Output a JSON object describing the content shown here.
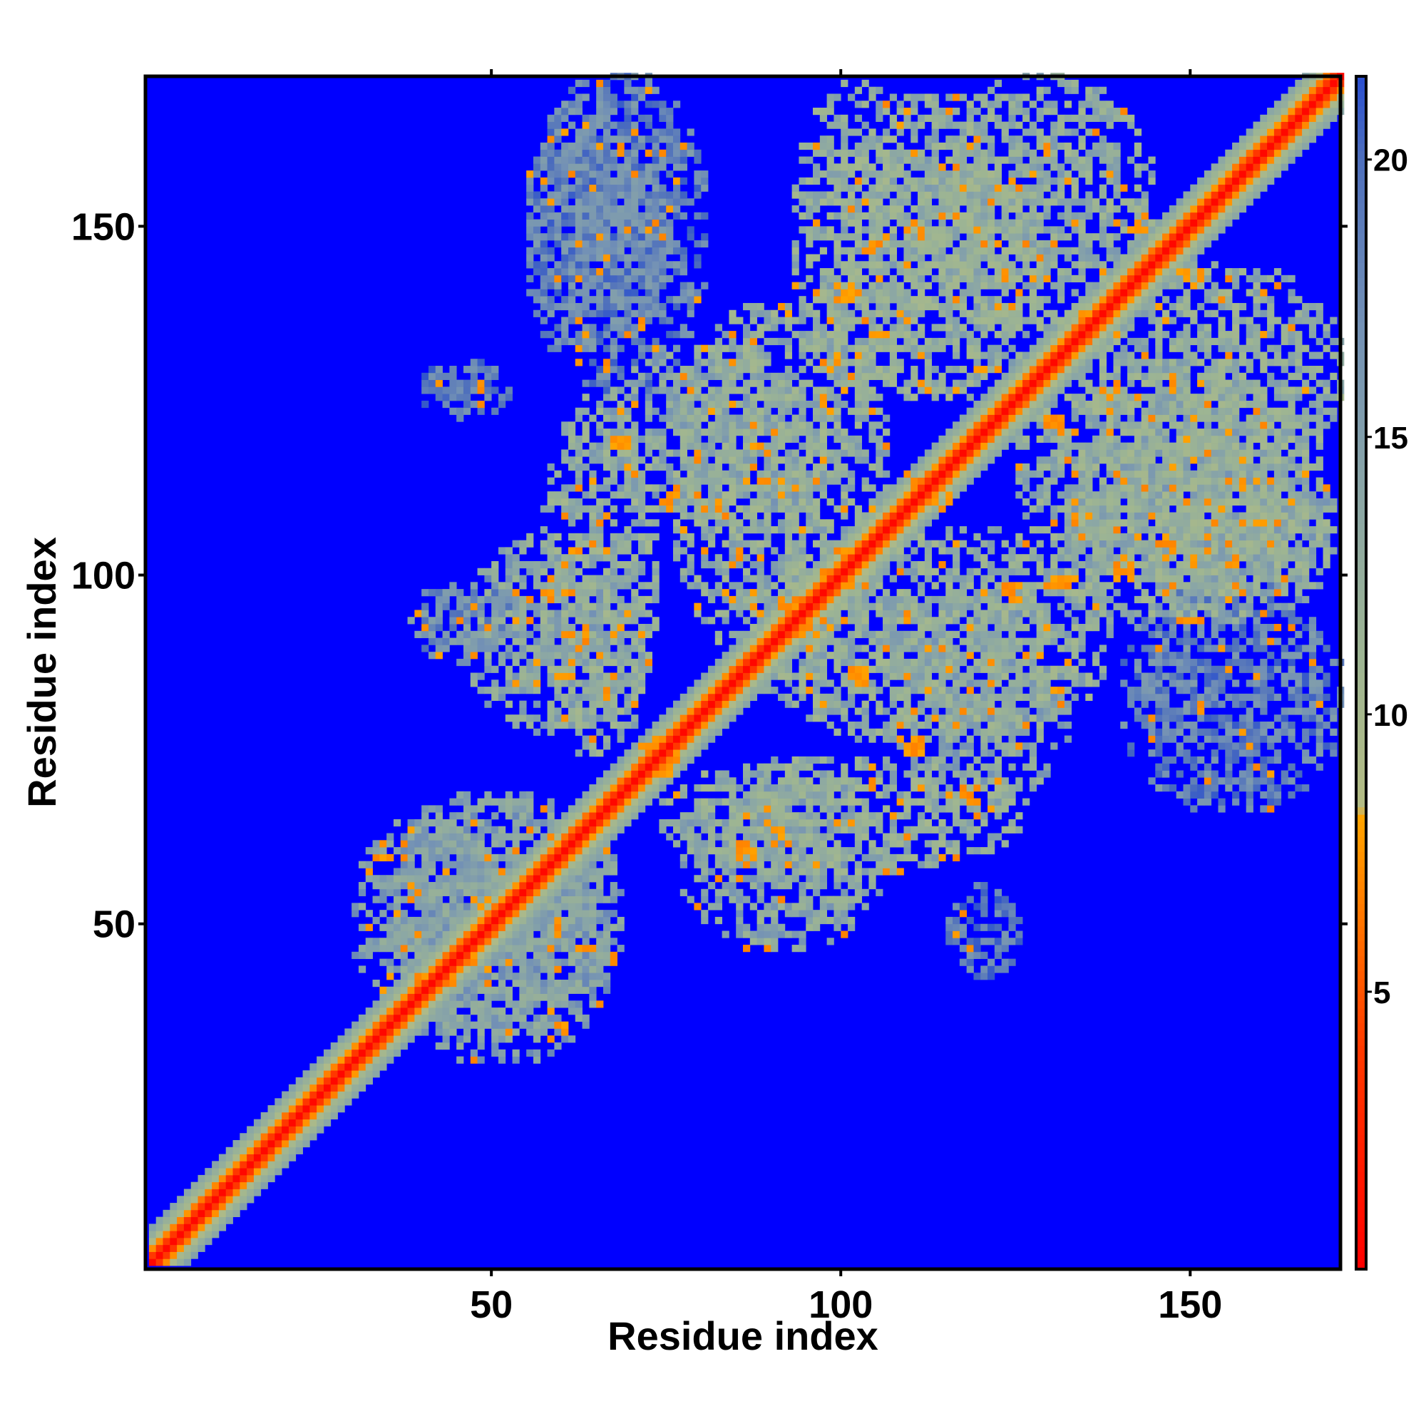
{
  "chart_data": {
    "type": "heatmap",
    "title": "",
    "xlabel": "Residue index",
    "ylabel": "Residue index",
    "xlim": [
      1,
      171
    ],
    "ylim": [
      1,
      171
    ],
    "x_ticks": [
      50,
      100,
      150
    ],
    "y_ticks": [
      50,
      100,
      150
    ],
    "grid": false,
    "n_residues": 171,
    "colorbar": {
      "range": [
        0,
        21.5
      ],
      "ticks": [
        5,
        10,
        15,
        20
      ],
      "stops": [
        {
          "value": 0,
          "color": "#ff0000"
        },
        {
          "value": 4,
          "color": "#ff3a00"
        },
        {
          "value": 6.5,
          "color": "#ff7a00"
        },
        {
          "value": 8.2,
          "color": "#ffa500"
        },
        {
          "value": 8.3,
          "color": "#b4bc84"
        },
        {
          "value": 11,
          "color": "#9eb592"
        },
        {
          "value": 14,
          "color": "#8aa6a6"
        },
        {
          "value": 17,
          "color": "#7391b5"
        },
        {
          "value": 20,
          "color": "#4e6fbc"
        },
        {
          "value": 21.5,
          "color": "#2a4fd0"
        }
      ]
    },
    "background_value": 21.5,
    "background_color": "#0000ff",
    "diagonal_band": {
      "width_residues": 5
    },
    "contact_regions": [
      {
        "x": [
          57,
          73
        ],
        "y": [
          74,
          125
        ],
        "level": 11
      },
      {
        "x": [
          74,
          125
        ],
        "y": [
          57,
          73
        ],
        "level": 11
      },
      {
        "x": [
          76,
          106
        ],
        "y": [
          86,
          138
        ],
        "level": 11
      },
      {
        "x": [
          86,
          138
        ],
        "y": [
          76,
          106
        ],
        "level": 11
      },
      {
        "x": [
          93,
          112
        ],
        "y": [
          127,
          170
        ],
        "level": 11
      },
      {
        "x": [
          127,
          170
        ],
        "y": [
          93,
          112
        ],
        "level": 11
      },
      {
        "x": [
          113,
          144
        ],
        "y": [
          134,
          171
        ],
        "level": 11
      },
      {
        "x": [
          134,
          171
        ],
        "y": [
          113,
          144
        ],
        "level": 11
      },
      {
        "x": [
          125,
          168
        ],
        "y": [
          100,
          128
        ],
        "level": 11
      },
      {
        "x": [
          100,
          128
        ],
        "y": [
          125,
          168
        ],
        "level": 11
      },
      {
        "x": [
          77,
          105
        ],
        "y": [
          46,
          72
        ],
        "level": 12
      },
      {
        "x": [
          46,
          72
        ],
        "y": [
          77,
          105
        ],
        "level": 12
      },
      {
        "x": [
          107,
          132
        ],
        "y": [
          66,
          97
        ],
        "level": 12
      },
      {
        "x": [
          66,
          97
        ],
        "y": [
          107,
          132
        ],
        "level": 12
      },
      {
        "x": [
          132,
          170
        ],
        "y": [
          95,
          120
        ],
        "level": 12
      },
      {
        "x": [
          35,
          67
        ],
        "y": [
          30,
          68
        ],
        "level": 13
      },
      {
        "x": [
          30,
          68
        ],
        "y": [
          35,
          67
        ],
        "level": 13
      },
      {
        "x": [
          140,
          171
        ],
        "y": [
          66,
          98
        ],
        "level": 16
      },
      {
        "x": [
          55,
          75
        ],
        "y": [
          132,
          168
        ],
        "level": 16
      },
      {
        "x": [
          38,
          55
        ],
        "y": [
          87,
          99
        ],
        "level": 15
      },
      {
        "x": [
          55,
          80
        ],
        "y": [
          126,
          171
        ],
        "level": 16
      },
      {
        "x": [
          115,
          125
        ],
        "y": [
          42,
          55
        ],
        "level": 17
      },
      {
        "x": [
          39,
          52
        ],
        "y": [
          122,
          130
        ],
        "level": 17
      }
    ],
    "hotspots": [
      [
        72,
        75
      ],
      [
        75,
        72
      ],
      [
        92,
        95
      ],
      [
        95,
        92
      ],
      [
        110,
        114
      ],
      [
        114,
        110
      ],
      [
        86,
        60
      ],
      [
        60,
        86
      ],
      [
        110,
        75
      ],
      [
        75,
        110
      ],
      [
        124,
        97
      ],
      [
        97,
        124
      ],
      [
        130,
        121
      ],
      [
        121,
        130
      ],
      [
        150,
        142
      ],
      [
        142,
        150
      ],
      [
        98,
        130
      ],
      [
        130,
        98
      ],
      [
        34,
        60
      ],
      [
        59,
        34
      ],
      [
        91,
        62
      ],
      [
        62,
        91
      ],
      [
        104,
        146
      ],
      [
        146,
        104
      ],
      [
        85,
        102
      ],
      [
        102,
        85
      ],
      [
        118,
        68
      ],
      [
        68,
        118
      ],
      [
        140,
        100
      ],
      [
        100,
        140
      ]
    ]
  }
}
